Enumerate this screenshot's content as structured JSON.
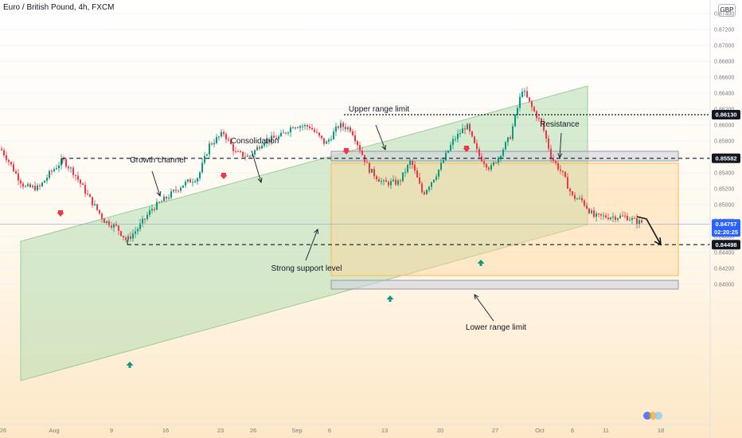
{
  "header": {
    "symbol": "Euro / British Pound, 4h, FXCM",
    "currency": "GBP"
  },
  "colors": {
    "up": "#26a69a",
    "upBody": "#089981",
    "down": "#f23645",
    "channel": "#9ccc9c",
    "range": "#ffcc80",
    "zoneGrey": "#b2b5be",
    "priceTag": "#2962ff",
    "dark": "#131722"
  },
  "chart_data": {
    "type": "candlestick",
    "symbol": "EURGBP",
    "timeframe": "4h",
    "source": "FXCM",
    "title": "Euro / British Pound, 4h, FXCM",
    "ylim": [
      0.8395,
      0.8755
    ],
    "x_ticks": [
      "26",
      "Aug",
      "9",
      "16",
      "23",
      "26",
      "Sep",
      "6",
      "13",
      "20",
      "27",
      "Oct",
      "6",
      "11",
      "18"
    ],
    "y_ticks": [
      "0.87400",
      "0.87200",
      "0.87000",
      "0.86800",
      "0.86600",
      "0.86400",
      "0.86200",
      "0.86000",
      "0.85800",
      "0.85600",
      "0.85400",
      "0.85200",
      "0.85000",
      "0.84800",
      "0.84600",
      "0.84400",
      "0.84200",
      "0.84000"
    ],
    "price_path": [
      [
        0,
        0.857
      ],
      [
        8,
        0.8558
      ],
      [
        20,
        0.8537
      ],
      [
        30,
        0.8522
      ],
      [
        48,
        0.8521
      ],
      [
        62,
        0.854
      ],
      [
        78,
        0.8556
      ],
      [
        92,
        0.854
      ],
      [
        110,
        0.851
      ],
      [
        130,
        0.848
      ],
      [
        145,
        0.8472
      ],
      [
        158,
        0.8455
      ],
      [
        172,
        0.847
      ],
      [
        190,
        0.8495
      ],
      [
        210,
        0.851
      ],
      [
        228,
        0.8525
      ],
      [
        248,
        0.8535
      ],
      [
        262,
        0.8575
      ],
      [
        280,
        0.859
      ],
      [
        295,
        0.8565
      ],
      [
        312,
        0.856
      ],
      [
        330,
        0.858
      ],
      [
        350,
        0.8585
      ],
      [
        368,
        0.86
      ],
      [
        388,
        0.8598
      ],
      [
        408,
        0.8576
      ],
      [
        425,
        0.86
      ],
      [
        440,
        0.8595
      ],
      [
        462,
        0.8545
      ],
      [
        480,
        0.8527
      ],
      [
        500,
        0.8528
      ],
      [
        515,
        0.8555
      ],
      [
        530,
        0.8513
      ],
      [
        548,
        0.854
      ],
      [
        568,
        0.858
      ],
      [
        585,
        0.86
      ],
      [
        600,
        0.8562
      ],
      [
        615,
        0.8545
      ],
      [
        625,
        0.856
      ],
      [
        640,
        0.8586
      ],
      [
        655,
        0.8645
      ],
      [
        668,
        0.862
      ],
      [
        680,
        0.86
      ],
      [
        692,
        0.8558
      ],
      [
        705,
        0.854
      ],
      [
        718,
        0.851
      ],
      [
        730,
        0.8505
      ],
      [
        745,
        0.8485
      ],
      [
        765,
        0.8485
      ],
      [
        785,
        0.8485
      ],
      [
        800,
        0.8478
      ]
    ],
    "annotations": [
      {
        "text": "Growth channel"
      },
      {
        "text": "Consolidation"
      },
      {
        "text": "Upper range limit"
      },
      {
        "text": "Resistance"
      },
      {
        "text": "Strong support level"
      },
      {
        "text": "Lower range limit"
      }
    ],
    "levels": [
      {
        "label": "0.86130",
        "price": 0.8613,
        "style": "dotted"
      },
      {
        "label": "0.85582",
        "price": 0.85582,
        "style": "dashed"
      },
      {
        "label": "0.84498",
        "price": 0.84498,
        "style": "dashed"
      }
    ],
    "current_price": {
      "label": "0.84757",
      "price": 0.84757,
      "countdown": "02:20:25"
    },
    "projection": [
      [
        800,
        0.8485
      ],
      [
        812,
        0.8482
      ],
      [
        830,
        0.84498
      ]
    ]
  }
}
